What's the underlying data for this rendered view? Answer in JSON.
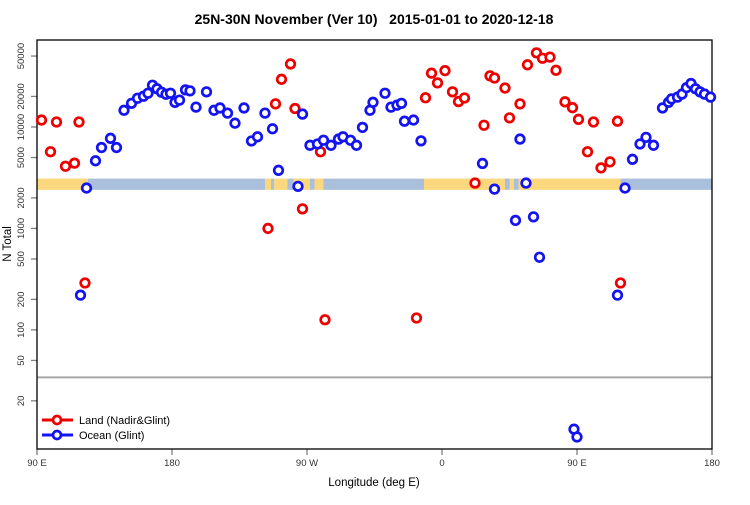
{
  "title": "25N-30N November (Ver 10)   2015-01-01 to 2020-12-18",
  "legend": {
    "items": [
      {
        "label": "Land (Nadir&Glint)",
        "color": "#ee0000"
      },
      {
        "label": "Ocean (Glint)",
        "color": "#1414f0"
      }
    ]
  },
  "chart_data": {
    "type": "scatter",
    "title": "25N-30N November (Ver 10)   2015-01-01 to 2020-12-18",
    "xlabel": "Longitude (deg E)",
    "ylabel": "N Total",
    "x_axis": {
      "range": [
        90,
        540
      ],
      "ticks": [
        {
          "lon": 90,
          "label": "90 E"
        },
        {
          "lon": 180,
          "label": "180"
        },
        {
          "lon": 270,
          "label": "90 W"
        },
        {
          "lon": 360,
          "label": "0"
        },
        {
          "lon": 450,
          "label": "90 E"
        },
        {
          "lon": 540,
          "label": "180"
        }
      ]
    },
    "y_axis": {
      "scale": "log",
      "range": [
        6.7,
        72000
      ],
      "ticks": [
        20,
        50,
        100,
        200,
        500,
        1000,
        2000,
        5000,
        10000,
        20000,
        50000
      ]
    },
    "threshold_line": {
      "value": 34,
      "color": "#a6a6a6"
    },
    "surface_band": {
      "value_range": [
        2400,
        3100
      ],
      "land_color": "#fbd77d",
      "ocean_color": "#a9bfdc",
      "segments": [
        [
          90,
          124,
          "land"
        ],
        [
          124,
          242,
          "ocean"
        ],
        [
          242,
          246,
          "land"
        ],
        [
          246,
          248,
          "ocean"
        ],
        [
          248,
          257,
          "land"
        ],
        [
          257,
          261,
          "ocean"
        ],
        [
          261,
          272,
          "land"
        ],
        [
          272,
          275,
          "ocean"
        ],
        [
          275,
          281,
          "land"
        ],
        [
          281,
          348,
          "ocean"
        ],
        [
          348,
          402,
          "land"
        ],
        [
          402,
          405,
          "ocean"
        ],
        [
          405,
          408,
          "land"
        ],
        [
          408,
          411,
          "ocean"
        ],
        [
          411,
          479,
          "land"
        ],
        [
          479,
          540,
          "ocean"
        ]
      ]
    },
    "series": [
      {
        "name": "Land (Nadir&Glint)",
        "color": "#ee0000",
        "points": [
          [
            93,
            11700
          ],
          [
            103,
            11200
          ],
          [
            118,
            11200
          ],
          [
            99,
            5700
          ],
          [
            109,
            4100
          ],
          [
            115,
            4400
          ],
          [
            122,
            290
          ],
          [
            244,
            1000
          ],
          [
            249,
            16900
          ],
          [
            253,
            29500
          ],
          [
            259,
            41800
          ],
          [
            262,
            15200
          ],
          [
            267,
            1560
          ],
          [
            279,
            5700
          ],
          [
            282,
            126
          ],
          [
            343,
            131
          ],
          [
            349,
            19400
          ],
          [
            353,
            33900
          ],
          [
            357,
            27200
          ],
          [
            362,
            35900
          ],
          [
            367,
            22200
          ],
          [
            371,
            17800
          ],
          [
            375,
            19300
          ],
          [
            382,
            2800
          ],
          [
            388,
            10400
          ],
          [
            392,
            31900
          ],
          [
            395,
            30400
          ],
          [
            402,
            24200
          ],
          [
            405,
            12300
          ],
          [
            412,
            16900
          ],
          [
            417,
            41000
          ],
          [
            423,
            53800
          ],
          [
            427,
            47600
          ],
          [
            432,
            48800
          ],
          [
            436,
            36200
          ],
          [
            442,
            17700
          ],
          [
            447,
            15500
          ],
          [
            451,
            11900
          ],
          [
            457,
            5700
          ],
          [
            461,
            11200
          ],
          [
            466,
            3950
          ],
          [
            472,
            4530
          ],
          [
            477,
            11400
          ],
          [
            479,
            290
          ]
        ]
      },
      {
        "name": "Ocean (Glint)",
        "color": "#1414f0",
        "points": [
          [
            119,
            220
          ],
          [
            123,
            2500
          ],
          [
            129,
            4640
          ],
          [
            133,
            6270
          ],
          [
            139,
            7730
          ],
          [
            143,
            6270
          ],
          [
            148,
            14600
          ],
          [
            153,
            17100
          ],
          [
            157,
            19200
          ],
          [
            161,
            20100
          ],
          [
            164,
            21500
          ],
          [
            167,
            25800
          ],
          [
            170,
            23800
          ],
          [
            173,
            22000
          ],
          [
            176,
            21000
          ],
          [
            179,
            21500
          ],
          [
            182,
            17500
          ],
          [
            185,
            18400
          ],
          [
            189,
            23200
          ],
          [
            192,
            22700
          ],
          [
            196,
            15700
          ],
          [
            203,
            22200
          ],
          [
            208,
            14600
          ],
          [
            212,
            15400
          ],
          [
            217,
            13700
          ],
          [
            222,
            10900
          ],
          [
            228,
            15400
          ],
          [
            233,
            7280
          ],
          [
            237,
            8000
          ],
          [
            242,
            13700
          ],
          [
            247,
            9600
          ],
          [
            251,
            3740
          ],
          [
            264,
            2600
          ],
          [
            267,
            13400
          ],
          [
            272,
            6600
          ],
          [
            277,
            6800
          ],
          [
            281,
            7400
          ],
          [
            286,
            6600
          ],
          [
            291,
            7600
          ],
          [
            294,
            8000
          ],
          [
            299,
            7400
          ],
          [
            303,
            6600
          ],
          [
            307,
            9900
          ],
          [
            312,
            14600
          ],
          [
            314,
            17500
          ],
          [
            322,
            21500
          ],
          [
            326,
            15700
          ],
          [
            330,
            16400
          ],
          [
            333,
            17100
          ],
          [
            335,
            11400
          ],
          [
            341,
            11700
          ],
          [
            346,
            7300
          ],
          [
            387,
            4370
          ],
          [
            395,
            2440
          ],
          [
            409,
            1200
          ],
          [
            412,
            7600
          ],
          [
            416,
            2800
          ],
          [
            421,
            1300
          ],
          [
            425,
            520
          ],
          [
            448,
            10.5
          ],
          [
            450,
            8.8
          ],
          [
            477,
            220
          ],
          [
            482,
            2500
          ],
          [
            487,
            4800
          ],
          [
            492,
            6800
          ],
          [
            496,
            7900
          ],
          [
            501,
            6600
          ],
          [
            507,
            15400
          ],
          [
            511,
            17500
          ],
          [
            513,
            18900
          ],
          [
            517,
            19700
          ],
          [
            520,
            21100
          ],
          [
            523,
            24400
          ],
          [
            526,
            26800
          ],
          [
            529,
            23800
          ],
          [
            532,
            22200
          ],
          [
            535,
            21100
          ],
          [
            539,
            19700
          ]
        ]
      }
    ]
  }
}
